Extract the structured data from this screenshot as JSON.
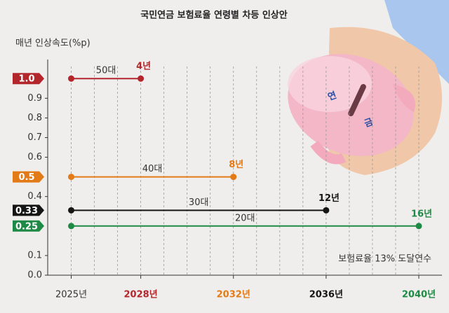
{
  "chart_data": {
    "type": "segment",
    "title": "국민연금 보험료율 연령별 차등 인상안",
    "ylabel": "매년 인상속도(%p)",
    "annotation": "보험료율 13% 도달연수",
    "illustration_text": [
      "연",
      "금"
    ],
    "ylim": [
      0,
      1.04
    ],
    "yticks": [
      {
        "value": 0,
        "label": "0.0"
      },
      0.1,
      0.4,
      0.6,
      0.7,
      0.8,
      0.9
    ],
    "xlim": [
      2024.5,
      2041
    ],
    "xticks": [
      {
        "value": 2025,
        "label": "2025년"
      },
      {
        "value": 2028,
        "label": "2028년"
      },
      {
        "value": 2032,
        "label": "2032년"
      },
      {
        "value": 2036,
        "label": "2036년"
      },
      {
        "value": 2040,
        "label": "2040년"
      }
    ],
    "grid": true,
    "series": [
      {
        "name": "50대",
        "color": "#b3262b",
        "value": 1.0,
        "value_label": "1.0",
        "start": 2025,
        "end": 2028,
        "duration_label": "4년"
      },
      {
        "name": "40대",
        "color": "#e27b17",
        "value": 0.5,
        "value_label": "0.5",
        "start": 2025,
        "end": 2032,
        "duration_label": "8년"
      },
      {
        "name": "30대",
        "color": "#151515",
        "value": 0.33,
        "value_label": "0.33",
        "start": 2025,
        "end": 2036,
        "duration_label": "12년"
      },
      {
        "name": "20대",
        "color": "#1f8a45",
        "value": 0.25,
        "value_label": "0.25",
        "start": 2025,
        "end": 2040,
        "duration_label": "16년"
      }
    ]
  }
}
